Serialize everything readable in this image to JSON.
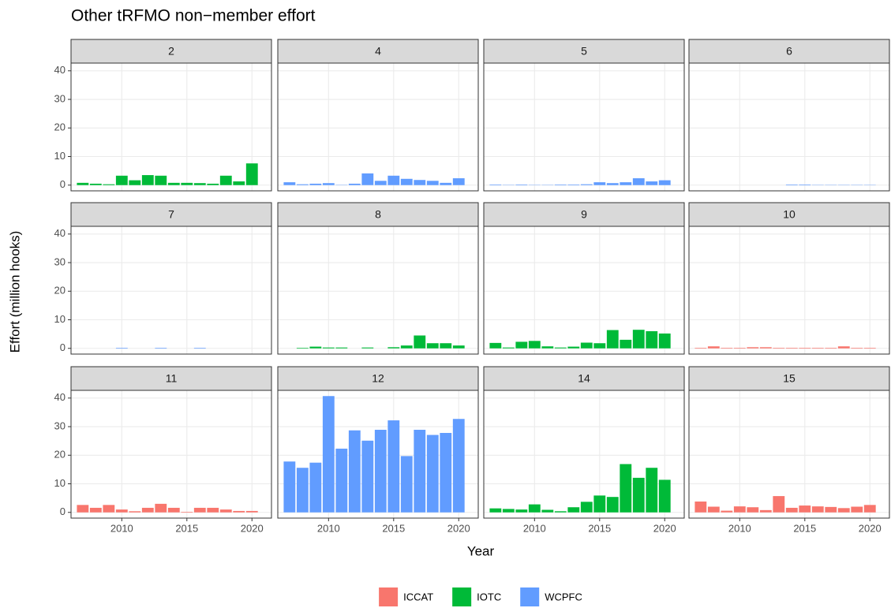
{
  "chart_data": {
    "type": "bar",
    "title": "Other tRFMO non−member effort",
    "x_label": "Year",
    "y_label": "Effort (million hooks)",
    "x": [
      2007,
      2008,
      2009,
      2010,
      2011,
      2012,
      2013,
      2014,
      2015,
      2016,
      2017,
      2018,
      2019,
      2020
    ],
    "xlim": [
      2006.1,
      2021.5
    ],
    "xticks": [
      2010,
      2015,
      2020
    ],
    "ylim": [
      -2,
      42.7
    ],
    "yticks": [
      0,
      10,
      20,
      30,
      40
    ],
    "grid": true,
    "legend_position": "bottom",
    "panels": [
      {
        "title": "2",
        "series": [
          {
            "name": "IOTC",
            "color": "#00ba38",
            "values": [
              0.8,
              0.5,
              0.3,
              3.3,
              1.7,
              3.5,
              3.3,
              0.8,
              0.8,
              0.7,
              0.5,
              3.3,
              1.3,
              7.6
            ]
          }
        ]
      },
      {
        "title": "4",
        "series": [
          {
            "name": "WCPFC",
            "color": "#619cff",
            "values": [
              1.0,
              0.3,
              0.5,
              0.7,
              0.1,
              0.5,
              4.1,
              1.5,
              3.3,
              2.2,
              1.8,
              1.5,
              0.8,
              2.4
            ]
          }
        ]
      },
      {
        "title": "5",
        "series": [
          {
            "name": "WCPFC",
            "color": "#619cff",
            "values": [
              0.2,
              0.1,
              0.2,
              0.1,
              0.1,
              0.2,
              0.2,
              0.3,
              1.0,
              0.7,
              1.0,
              2.4,
              1.3,
              1.7
            ]
          }
        ]
      },
      {
        "title": "6",
        "series": [
          {
            "name": "WCPFC",
            "color": "#619cff",
            "values": [
              null,
              null,
              null,
              null,
              null,
              null,
              null,
              0.2,
              0.2,
              0.1,
              0.1,
              0.1,
              0.1,
              0.1
            ]
          }
        ]
      },
      {
        "title": "7",
        "series": [
          {
            "name": "WCPFC",
            "color": "#619cff",
            "values": [
              null,
              null,
              null,
              0.2,
              null,
              null,
              0.2,
              null,
              null,
              0.2,
              null,
              null,
              null,
              null
            ]
          }
        ]
      },
      {
        "title": "8",
        "series": [
          {
            "name": "IOTC",
            "color": "#00ba38",
            "values": [
              null,
              0.2,
              0.6,
              0.3,
              0.3,
              null,
              0.3,
              null,
              0.4,
              1.0,
              4.5,
              1.8,
              1.8,
              1.0
            ]
          }
        ]
      },
      {
        "title": "9",
        "series": [
          {
            "name": "IOTC",
            "color": "#00ba38",
            "values": [
              1.9,
              0.3,
              2.3,
              2.6,
              0.7,
              0.3,
              0.6,
              2.0,
              1.8,
              6.4,
              3.0,
              6.5,
              6.0,
              5.2
            ]
          }
        ]
      },
      {
        "title": "10",
        "series": [
          {
            "name": "ICCAT",
            "color": "#f8766d",
            "values": [
              0.2,
              0.7,
              0.2,
              0.2,
              0.4,
              0.4,
              0.2,
              0.2,
              0.2,
              0.2,
              0.2,
              0.7,
              0.2,
              0.2
            ]
          }
        ]
      },
      {
        "title": "11",
        "series": [
          {
            "name": "ICCAT",
            "color": "#f8766d",
            "values": [
              2.6,
              1.6,
              2.6,
              1.0,
              0.4,
              1.6,
              3.0,
              1.6,
              0.2,
              1.6,
              1.6,
              1.0,
              0.5,
              0.5
            ]
          }
        ]
      },
      {
        "title": "12",
        "series": [
          {
            "name": "WCPFC",
            "color": "#619cff",
            "values": [
              17.8,
              15.6,
              17.4,
              40.7,
              22.3,
              28.7,
              25.1,
              28.9,
              32.2,
              19.7,
              28.9,
              27.1,
              27.8,
              32.7
            ]
          }
        ]
      },
      {
        "title": "14",
        "series": [
          {
            "name": "IOTC",
            "color": "#00ba38",
            "values": [
              1.4,
              1.2,
              1.0,
              2.8,
              0.9,
              0.4,
              1.8,
              3.7,
              5.9,
              5.4,
              16.9,
              12.1,
              15.6,
              11.4
            ]
          }
        ]
      },
      {
        "title": "15",
        "series": [
          {
            "name": "ICCAT",
            "color": "#f8766d",
            "values": [
              3.8,
              2.0,
              0.6,
              2.1,
              1.8,
              0.8,
              5.7,
              1.6,
              2.4,
              2.1,
              1.9,
              1.5,
              2.0,
              2.6
            ]
          }
        ]
      }
    ]
  }
}
